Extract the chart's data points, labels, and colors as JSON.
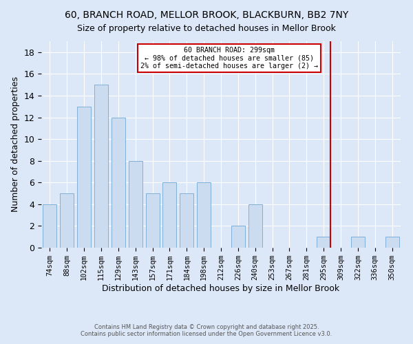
{
  "title": "60, BRANCH ROAD, MELLOR BROOK, BLACKBURN, BB2 7NY",
  "subtitle": "Size of property relative to detached houses in Mellor Brook",
  "xlabel": "Distribution of detached houses by size in Mellor Brook",
  "ylabel": "Number of detached properties",
  "bar_labels": [
    "74sqm",
    "88sqm",
    "102sqm",
    "115sqm",
    "129sqm",
    "143sqm",
    "157sqm",
    "171sqm",
    "184sqm",
    "198sqm",
    "212sqm",
    "226sqm",
    "240sqm",
    "253sqm",
    "267sqm",
    "281sqm",
    "295sqm",
    "309sqm",
    "322sqm",
    "336sqm",
    "350sqm"
  ],
  "bar_heights": [
    4,
    5,
    13,
    15,
    12,
    8,
    5,
    6,
    5,
    6,
    0,
    2,
    4,
    0,
    0,
    0,
    1,
    0,
    1,
    0,
    1
  ],
  "bar_color": "#ccdcf0",
  "bar_edgecolor": "#7fb0d8",
  "annotation_line1": "60 BRANCH ROAD: 299sqm",
  "annotation_line2": "← 98% of detached houses are smaller (85)",
  "annotation_line3": "2% of semi-detached houses are larger (2) →",
  "ylim": [
    0,
    19
  ],
  "yticks": [
    0,
    2,
    4,
    6,
    8,
    10,
    12,
    14,
    16,
    18
  ],
  "bg_color": "#dce8f8",
  "footer1": "Contains HM Land Registry data © Crown copyright and database right 2025.",
  "footer2": "Contains public sector information licensed under the Open Government Licence v3.0.",
  "ref_line_color": "#cc0000",
  "annotation_box_edgecolor": "#cc0000",
  "annotation_box_facecolor": "#ffffff",
  "ref_bar_index": 16,
  "title_fontsize": 10,
  "subtitle_fontsize": 9
}
